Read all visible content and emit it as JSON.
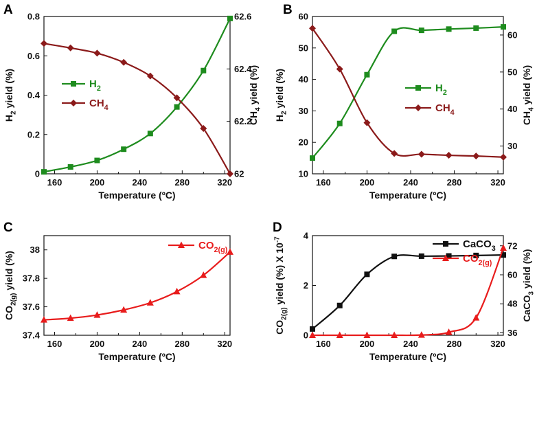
{
  "chart_data": [
    {
      "panel": "A",
      "type": "line",
      "xlabel": "Temperature (ºC)",
      "ylabel": "H|2| yield (%)",
      "y2label": "CH|4| yield (%)",
      "xlim": [
        150,
        325
      ],
      "ylim": [
        0,
        0.8
      ],
      "y2lim": [
        62,
        62.6
      ],
      "xticks": [
        160,
        200,
        240,
        280,
        320
      ],
      "yticks": [
        0,
        0.2,
        0.4,
        0.6,
        0.8
      ],
      "ytick_labels": [
        "0",
        "0.2",
        "0.4",
        "0.6",
        "0.8"
      ],
      "y2ticks": [
        62,
        62.2,
        62.4,
        62.6
      ],
      "y2tick_labels": [
        "62",
        "62.2",
        "62.4",
        "62.6"
      ],
      "legend_position": "center-left",
      "series": [
        {
          "name": "H|2|",
          "axis": "left",
          "color": "#1e8c1e",
          "marker": "square",
          "x": [
            150,
            175,
            200,
            225,
            250,
            275,
            300,
            325
          ],
          "values": [
            0.01,
            0.035,
            0.068,
            0.125,
            0.205,
            0.34,
            0.525,
            0.79
          ]
        },
        {
          "name": "CH|4|",
          "axis": "right",
          "color": "#8b1a1a",
          "marker": "diamond",
          "x": [
            150,
            175,
            200,
            225,
            250,
            275,
            300,
            325
          ],
          "values": [
            62.497,
            62.48,
            62.46,
            62.425,
            62.373,
            62.29,
            62.173,
            62.0
          ]
        }
      ]
    },
    {
      "panel": "B",
      "type": "line",
      "xlabel": "Temperature (ºC)",
      "ylabel": "H|2| yield (%)",
      "y2label": "CH|4| yield (%)",
      "xlim": [
        150,
        325
      ],
      "ylim": [
        10,
        60
      ],
      "y2lim": [
        22.5,
        65
      ],
      "xticks": [
        160,
        200,
        240,
        280,
        320
      ],
      "yticks": [
        10,
        20,
        30,
        40,
        50,
        60
      ],
      "ytick_labels": [
        "10",
        "20",
        "30",
        "40",
        "50",
        "60"
      ],
      "y2ticks": [
        30,
        40,
        50,
        60
      ],
      "y2tick_labels": [
        "30",
        "40",
        "50",
        "60"
      ],
      "legend_position": "center-right",
      "series": [
        {
          "name": "H|2|",
          "axis": "left",
          "color": "#1e8c1e",
          "marker": "square",
          "x": [
            150,
            175,
            200,
            225,
            250,
            275,
            300,
            325
          ],
          "values": [
            15,
            26,
            41.5,
            55.3,
            55.6,
            56.0,
            56.3,
            56.7
          ]
        },
        {
          "name": "CH|4|",
          "axis": "right",
          "color": "#8b1a1a",
          "marker": "diamond",
          "x": [
            150,
            175,
            200,
            225,
            250,
            275,
            300,
            325
          ],
          "values": [
            61.8,
            50.8,
            36.3,
            28.0,
            27.8,
            27.5,
            27.3,
            27.0
          ]
        }
      ]
    },
    {
      "panel": "C",
      "type": "line",
      "xlabel": "Temperature (ºC)",
      "ylabel": "CO|2(g)| yield (%)",
      "xlim": [
        150,
        325
      ],
      "ylim": [
        37.4,
        38.1
      ],
      "xticks": [
        160,
        200,
        240,
        280,
        320
      ],
      "yticks": [
        37.4,
        37.6,
        37.8,
        38.0
      ],
      "ytick_labels": [
        "37.4",
        "37.6",
        "37.8",
        "38"
      ],
      "legend_position": "top-right",
      "series": [
        {
          "name": "CO|2(g)|",
          "axis": "left",
          "color": "#e81c1c",
          "marker": "triangle",
          "x": [
            150,
            175,
            200,
            225,
            250,
            275,
            300,
            325
          ],
          "values": [
            37.508,
            37.52,
            37.542,
            37.578,
            37.628,
            37.707,
            37.822,
            37.985
          ]
        }
      ]
    },
    {
      "panel": "D",
      "type": "line",
      "xlabel": "Temperature (ºC)",
      "ylabel": "CO|2(g)| yield (%) X 10^-7^",
      "y2label": "CaCO|3| yield (%)",
      "xlim": [
        150,
        325
      ],
      "ylim": [
        0,
        4
      ],
      "y2lim": [
        35,
        76.2
      ],
      "xticks": [
        160,
        200,
        240,
        280,
        320
      ],
      "yticks": [
        0,
        2,
        4
      ],
      "ytick_labels": [
        "0",
        "2",
        "4"
      ],
      "y2ticks": [
        36,
        48,
        60,
        72
      ],
      "y2tick_labels": [
        "36",
        "48",
        "60",
        "72"
      ],
      "legend_position": "top-right",
      "series": [
        {
          "name": "CaCO|3|",
          "axis": "right",
          "color": "#111111",
          "marker": "square",
          "x": [
            150,
            175,
            200,
            225,
            250,
            275,
            300,
            325
          ],
          "values": [
            37.6,
            47.3,
            60.2,
            67.6,
            67.7,
            67.8,
            68.0,
            68.2
          ]
        },
        {
          "name": "CO|2(g)|",
          "axis": "left",
          "color": "#e81c1c",
          "marker": "triangle",
          "x": [
            150,
            175,
            200,
            225,
            250,
            275,
            300,
            325
          ],
          "values": [
            0,
            0,
            0,
            0,
            0.01,
            0.12,
            0.7,
            3.5
          ]
        }
      ]
    }
  ]
}
